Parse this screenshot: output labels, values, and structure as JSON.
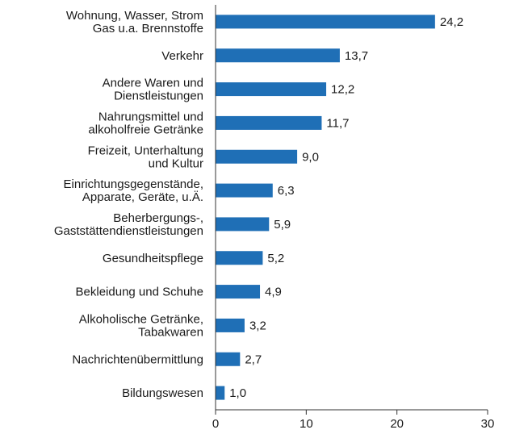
{
  "chart_data": {
    "type": "bar",
    "orientation": "horizontal",
    "categories": [
      [
        "Wohnung, Wasser, Strom",
        "Gas u.a. Brennstoffe"
      ],
      [
        "Verkehr"
      ],
      [
        "Andere Waren und",
        "Dienstleistungen"
      ],
      [
        "Nahrungsmittel und",
        "alkoholfreie Getränke"
      ],
      [
        "Freizeit, Unterhaltung",
        "und Kultur"
      ],
      [
        "Einrichtungsgegenstände,",
        "Apparate, Geräte, u.Ä."
      ],
      [
        "Beherbergungs-,",
        "Gaststättendienstleistungen"
      ],
      [
        "Gesundheitspflege"
      ],
      [
        "Bekleidung und Schuhe"
      ],
      [
        "Alkoholische Getränke,",
        "Tabakwaren"
      ],
      [
        "Nachrichtenübermittlung"
      ],
      [
        "Bildungswesen"
      ]
    ],
    "values": [
      24.2,
      13.7,
      12.2,
      11.7,
      9.0,
      6.3,
      5.9,
      5.2,
      4.9,
      3.2,
      2.7,
      1.0
    ],
    "value_labels": [
      "24,2",
      "13,7",
      "12,2",
      "11,7",
      "9,0",
      "6,3",
      "5,9",
      "5,2",
      "4,9",
      "3,2",
      "2,7",
      "1,0"
    ],
    "color": "#1f6fb6",
    "xlim": [
      0,
      30
    ],
    "xticks": [
      0,
      10,
      20,
      30
    ]
  }
}
